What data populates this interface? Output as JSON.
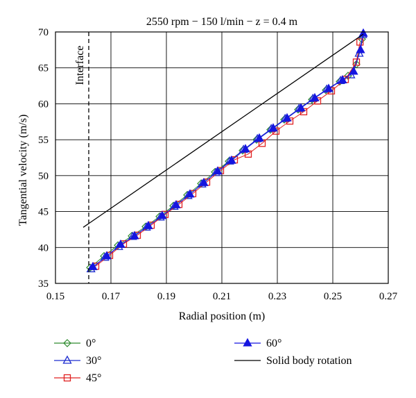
{
  "chart_data": {
    "type": "scatter",
    "title": "2550 rpm − 150 l/min − z = 0.4 m",
    "xlabel": "Radial position (m)",
    "ylabel": "Tangential velocity (m/s)",
    "xlim": [
      0.15,
      0.27
    ],
    "ylim": [
      35,
      70
    ],
    "xticks": [
      "0.15",
      "0.17",
      "0.19",
      "0.21",
      "0.23",
      "0.25",
      "0.27"
    ],
    "yticks": [
      "35",
      "40",
      "45",
      "50",
      "55",
      "60",
      "65",
      "70"
    ],
    "grid": true,
    "interface": {
      "label": "Interface",
      "x": 0.162
    },
    "colors": {
      "s0": "#2e8b2e",
      "s30": "#1f2fd0",
      "s45": "#e02020",
      "s60": "#1515e0",
      "solid": "#000000"
    },
    "series": [
      {
        "name": "0°",
        "marker": "diamond-open",
        "x": [
          0.1625,
          0.1675,
          0.1725,
          0.1775,
          0.1825,
          0.1875,
          0.1925,
          0.1975,
          0.2025,
          0.2075,
          0.2125,
          0.2175,
          0.2225,
          0.2275,
          0.2325,
          0.2375,
          0.2425,
          0.2475,
          0.2525,
          0.2555,
          0.2585,
          0.2605
        ],
        "y": [
          37.2,
          38.8,
          40.3,
          41.6,
          42.9,
          44.3,
          45.8,
          47.3,
          48.9,
          50.5,
          52.0,
          53.5,
          55.0,
          56.4,
          57.8,
          59.2,
          60.6,
          61.9,
          63.1,
          63.9,
          65.5,
          69.0
        ]
      },
      {
        "name": "30°",
        "marker": "triangle-open",
        "x": [
          0.1628,
          0.1678,
          0.1728,
          0.1778,
          0.1828,
          0.1878,
          0.1928,
          0.1978,
          0.2028,
          0.2078,
          0.2128,
          0.2178,
          0.2228,
          0.2278,
          0.2328,
          0.2378,
          0.2428,
          0.2478,
          0.2528,
          0.2565,
          0.2595,
          0.2608
        ],
        "y": [
          37.0,
          38.6,
          40.1,
          41.5,
          42.8,
          44.2,
          45.7,
          47.2,
          48.8,
          50.4,
          52.0,
          53.6,
          55.1,
          56.5,
          57.9,
          59.3,
          60.7,
          62.0,
          63.2,
          64.0,
          67.0,
          69.6
        ]
      },
      {
        "name": "45°",
        "marker": "square-open",
        "x": [
          0.1645,
          0.1695,
          0.1745,
          0.1795,
          0.1845,
          0.1895,
          0.1945,
          0.1995,
          0.2045,
          0.2095,
          0.2145,
          0.2195,
          0.2245,
          0.2295,
          0.2345,
          0.2395,
          0.2445,
          0.2495,
          0.2545,
          0.2585,
          0.2598
        ],
        "y": [
          37.4,
          38.9,
          40.5,
          41.7,
          43.1,
          44.6,
          46.0,
          47.5,
          49.1,
          50.7,
          52.2,
          53.0,
          54.5,
          56.2,
          57.6,
          58.9,
          60.4,
          61.8,
          63.4,
          65.8,
          68.6
        ]
      },
      {
        "name": "60°",
        "marker": "triangle-filled",
        "x": [
          0.1635,
          0.1685,
          0.1735,
          0.1785,
          0.1835,
          0.1885,
          0.1935,
          0.1985,
          0.2035,
          0.2085,
          0.2135,
          0.2185,
          0.2235,
          0.2285,
          0.2335,
          0.2385,
          0.2435,
          0.2485,
          0.2535,
          0.2575,
          0.26,
          0.261
        ],
        "y": [
          37.3,
          38.8,
          40.4,
          41.6,
          43.0,
          44.4,
          45.9,
          47.4,
          49.0,
          50.6,
          52.1,
          53.7,
          55.2,
          56.6,
          58.0,
          59.4,
          60.8,
          62.1,
          63.3,
          64.5,
          67.5,
          69.8
        ]
      },
      {
        "name": "Solid body rotation",
        "marker": "line",
        "x": [
          0.16,
          0.261
        ],
        "y": [
          42.8,
          69.7
        ]
      }
    ],
    "legend": {
      "placement": "bottom",
      "entries": [
        "0°",
        "30°",
        "45°",
        "60°",
        "Solid body rotation"
      ]
    }
  }
}
